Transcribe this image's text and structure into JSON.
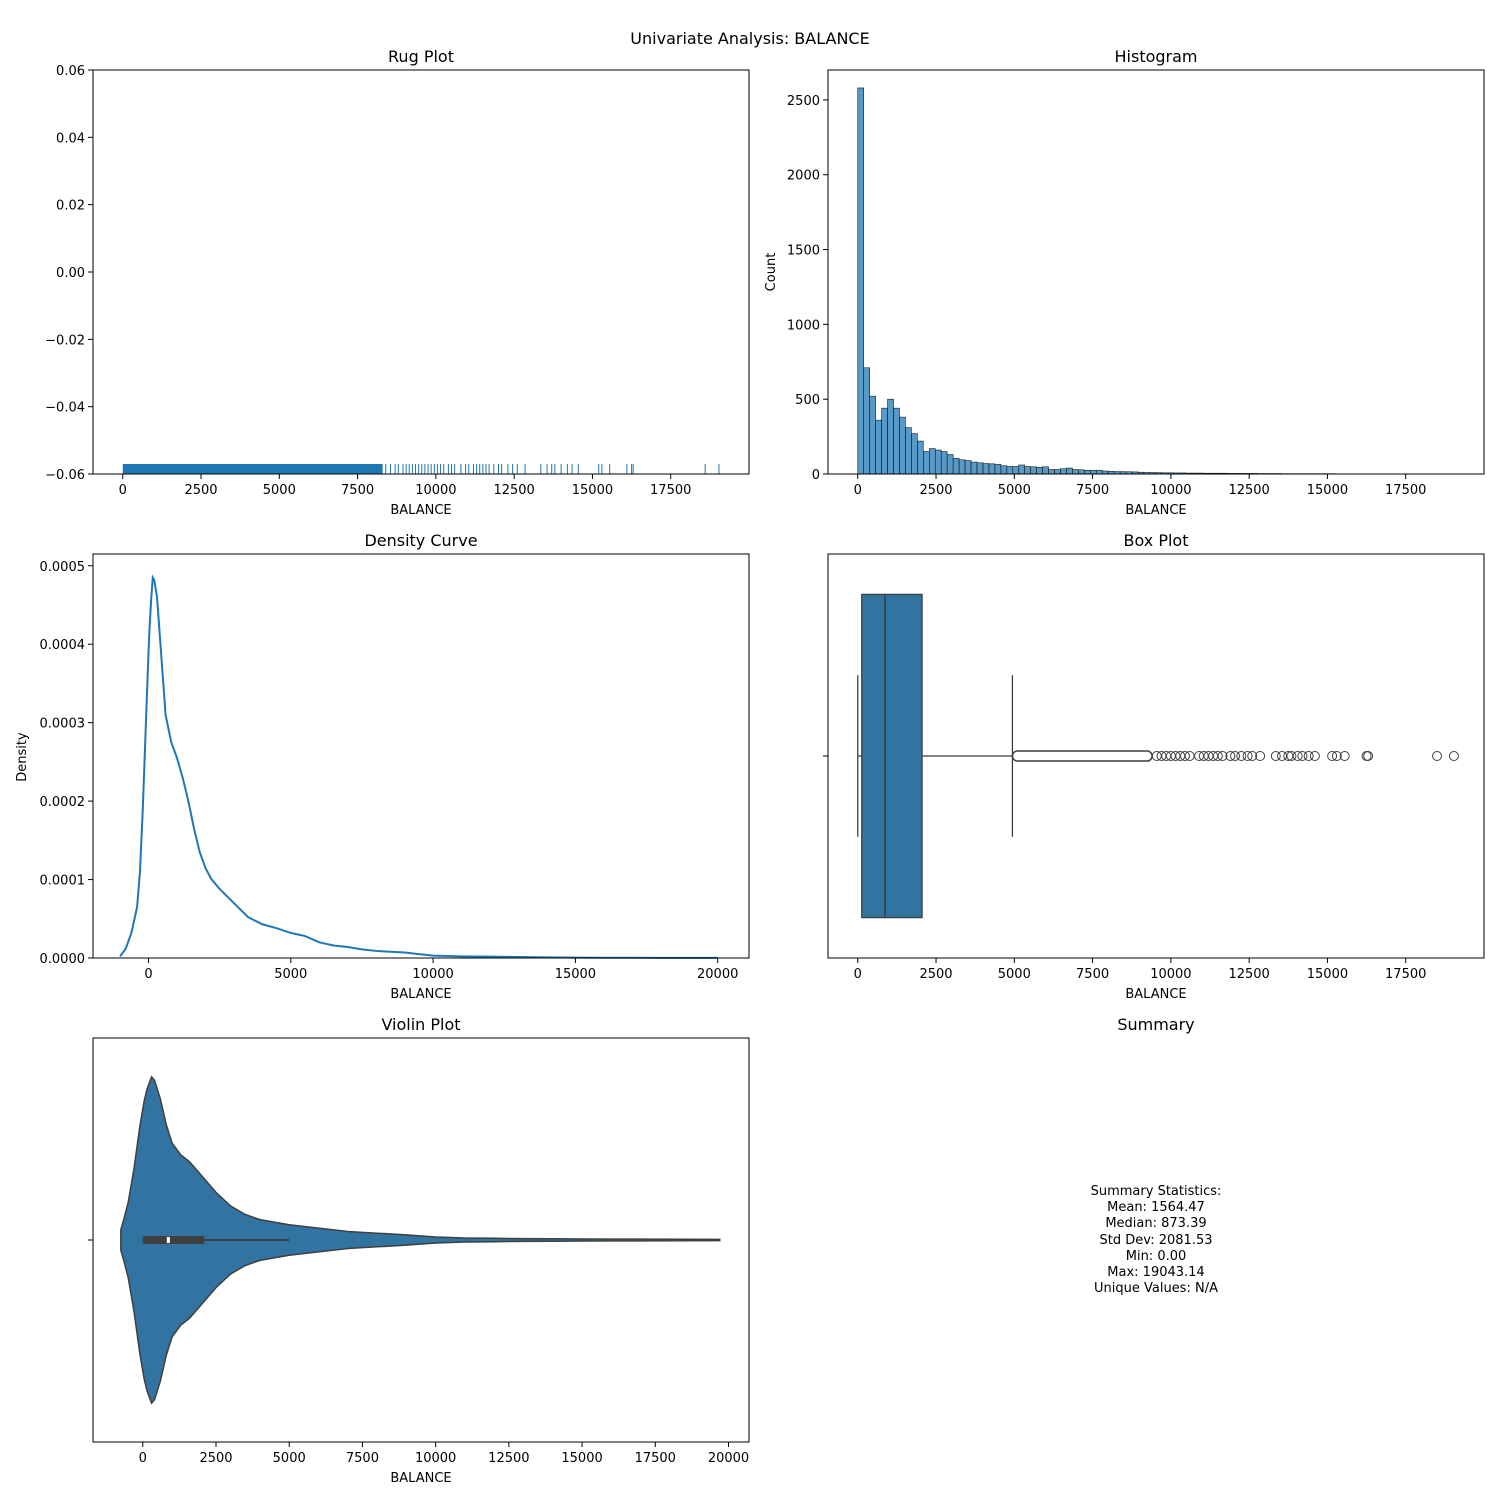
{
  "figure": {
    "suptitle": "Univariate Analysis: BALANCE",
    "primary_color": "#1f77b4",
    "box_color": "#3274a1"
  },
  "chart_data": [
    {
      "id": "rug",
      "type": "scatter",
      "title": "Rug Plot",
      "xlabel": "BALANCE",
      "ylabel": "",
      "xlim": [
        -950,
        20000
      ],
      "ylim": [
        -0.06,
        0.06
      ],
      "xticks": [
        0,
        2500,
        5000,
        7500,
        10000,
        12500,
        15000,
        17500
      ],
      "yticks": [
        -0.06,
        -0.04,
        -0.02,
        0.0,
        0.02,
        0.04,
        0.06
      ],
      "ytick_labels": [
        "−0.06",
        "−0.04",
        "−0.02",
        "0.00",
        "0.02",
        "0.04",
        "0.06"
      ],
      "dense_range": [
        0,
        8300
      ],
      "values": [
        8400,
        8550,
        8700,
        8800,
        8950,
        9050,
        9150,
        9250,
        9350,
        9450,
        9550,
        9650,
        9750,
        9850,
        9950,
        10050,
        10150,
        10250,
        10400,
        10500,
        10600,
        10800,
        10950,
        11050,
        11200,
        11300,
        11400,
        11500,
        11600,
        11700,
        11850,
        12000,
        12100,
        12300,
        12450,
        12600,
        12850,
        13350,
        13550,
        13700,
        13800,
        14000,
        14200,
        14350,
        14550,
        15200,
        15300,
        15550,
        16100,
        16250,
        16300,
        18600,
        19040
      ]
    },
    {
      "id": "hist",
      "type": "bar",
      "title": "Histogram",
      "xlabel": "BALANCE",
      "ylabel": "Count",
      "xlim": [
        -950,
        20000
      ],
      "ylim": [
        0,
        2700
      ],
      "xticks": [
        0,
        2500,
        5000,
        7500,
        10000,
        12500,
        15000,
        17500
      ],
      "yticks": [
        0,
        500,
        1000,
        1500,
        2000,
        2500
      ],
      "bin_start": 0,
      "bin_width": 190.43,
      "values": [
        2580,
        710,
        520,
        360,
        440,
        500,
        440,
        380,
        310,
        270,
        220,
        150,
        170,
        160,
        150,
        130,
        105,
        95,
        90,
        80,
        75,
        70,
        68,
        65,
        55,
        50,
        50,
        60,
        50,
        48,
        45,
        48,
        30,
        30,
        35,
        40,
        30,
        28,
        25,
        25,
        25,
        20,
        18,
        16,
        16,
        15,
        14,
        12,
        10,
        10,
        9,
        8,
        8,
        7,
        7,
        6,
        6,
        6,
        5,
        5,
        5,
        5,
        4,
        4,
        4,
        4,
        4,
        3,
        3,
        3,
        3,
        2,
        2,
        2,
        2,
        2,
        2,
        2,
        2,
        2,
        1,
        1,
        1,
        1,
        1,
        1,
        1,
        1,
        1,
        1,
        1,
        1,
        1,
        1,
        1,
        1,
        1,
        1,
        1,
        1
      ]
    },
    {
      "id": "density",
      "type": "line",
      "title": "Density Curve",
      "xlabel": "BALANCE",
      "ylabel": "Density",
      "xlim": [
        -1950,
        21100
      ],
      "ylim": [
        0,
        0.000515
      ],
      "xticks": [
        0,
        5000,
        10000,
        15000,
        20000
      ],
      "yticks": [
        0.0,
        0.0001,
        0.0002,
        0.0003,
        0.0004,
        0.0005
      ],
      "ytick_labels": [
        "0.0000",
        "0.0001",
        "0.0002",
        "0.0003",
        "0.0004",
        "0.0005"
      ],
      "x": [
        -1000,
        -800,
        -600,
        -400,
        -300,
        -200,
        -100,
        0,
        50,
        100,
        150,
        200,
        300,
        400,
        500,
        600,
        800,
        1000,
        1200,
        1400,
        1600,
        1800,
        2000,
        2200,
        2500,
        3000,
        3500,
        4000,
        4500,
        5000,
        5500,
        6000,
        6500,
        7000,
        7500,
        8000,
        8500,
        9000,
        9500,
        10000,
        11000,
        12000,
        13000,
        14000,
        15000,
        16000,
        17000,
        18000,
        19000,
        20000
      ],
      "y": [
        2e-06,
        1.2e-05,
        3.2e-05,
        6.5e-05,
        0.00011,
        0.00019,
        0.00029,
        0.00039,
        0.00043,
        0.00046,
        0.000485,
        0.000482,
        0.00046,
        0.00041,
        0.00036,
        0.00031,
        0.000275,
        0.000255,
        0.00023,
        0.0002,
        0.000165,
        0.000135,
        0.000115,
        0.000101,
        8.8e-05,
        7e-05,
        5.2e-05,
        4.3e-05,
        3.8e-05,
        3.2e-05,
        2.8e-05,
        2e-05,
        1.6e-05,
        1.4e-05,
        1.1e-05,
        9e-06,
        8e-06,
        7e-06,
        5e-06,
        3e-06,
        2e-06,
        1.8e-06,
        1.2e-06,
        8e-07,
        5e-07,
        4e-07,
        3e-07,
        2e-07,
        1e-07,
        1e-07
      ]
    },
    {
      "id": "box",
      "type": "box",
      "title": "Box Plot",
      "xlabel": "BALANCE",
      "ylabel": "",
      "xlim": [
        -950,
        20000
      ],
      "xticks": [
        0,
        2500,
        5000,
        7500,
        10000,
        12500,
        15000,
        17500
      ],
      "q1": 128,
      "median": 873.39,
      "q3": 2054,
      "whisker_low": 0,
      "whisker_high": 4940,
      "dense_outlier_range": [
        4940,
        9400
      ],
      "outliers": [
        9550,
        9700,
        9850,
        10000,
        10150,
        10300,
        10450,
        10600,
        10900,
        11050,
        11200,
        11350,
        11500,
        11650,
        11900,
        12050,
        12250,
        12450,
        12600,
        12850,
        13350,
        13550,
        13750,
        13850,
        14050,
        14200,
        14400,
        14600,
        15150,
        15300,
        15550,
        16250,
        16300,
        18500,
        19040
      ]
    },
    {
      "id": "violin",
      "type": "area",
      "title": "Violin Plot",
      "xlabel": "BALANCE",
      "ylabel": "",
      "xlim": [
        -1700,
        20700
      ],
      "xticks": [
        0,
        2500,
        5000,
        7500,
        10000,
        12500,
        15000,
        17500,
        20000
      ],
      "x": [
        -750,
        -650,
        -500,
        -300,
        -100,
        50,
        150,
        300,
        400,
        600,
        800,
        1000,
        1300,
        1600,
        2000,
        2500,
        3000,
        3500,
        4000,
        5000,
        6000,
        7000,
        8000,
        9000,
        10000,
        11000,
        12000,
        13000,
        14000,
        15000,
        17000,
        19700
      ],
      "width": [
        0.06,
        0.12,
        0.22,
        0.42,
        0.67,
        0.82,
        0.89,
        0.96,
        0.94,
        0.83,
        0.68,
        0.57,
        0.5,
        0.46,
        0.38,
        0.28,
        0.2,
        0.15,
        0.12,
        0.09,
        0.07,
        0.05,
        0.04,
        0.03,
        0.018,
        0.012,
        0.01,
        0.008,
        0.007,
        0.006,
        0.005,
        0.004
      ],
      "q1": 0,
      "median": 873.39,
      "q3": 2100,
      "whisker_low": 0,
      "whisker_high": 5000
    }
  ],
  "summary": {
    "title": "Summary",
    "lines": [
      "Summary Statistics:",
      "Mean: 1564.47",
      "Median: 873.39",
      "Std Dev: 2081.53",
      "Min: 0.00",
      "Max: 19043.14",
      "Unique Values: N/A"
    ]
  }
}
